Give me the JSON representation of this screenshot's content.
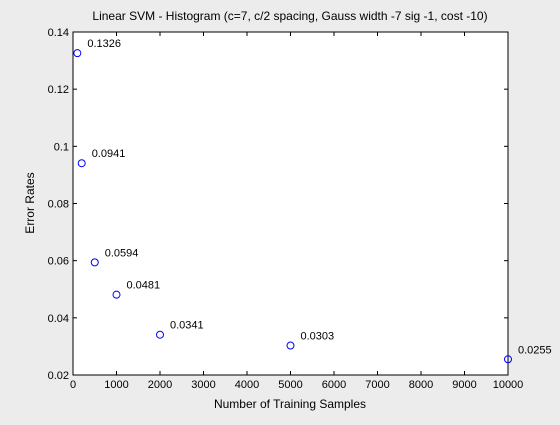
{
  "chart_data": {
    "type": "scatter",
    "title": "Linear SVM - Histogram (c=7, c/2 spacing, Gauss width -7 sig -1, cost -10)",
    "xlabel": "Number of Training Samples",
    "ylabel": "Error Rates",
    "xlim": [
      0,
      10000
    ],
    "ylim": [
      0.02,
      0.14
    ],
    "xticks": [
      0,
      1000,
      2000,
      3000,
      4000,
      5000,
      6000,
      7000,
      8000,
      9000,
      10000
    ],
    "xtick_labels": [
      "0",
      "1000",
      "2000",
      "3000",
      "4000",
      "5000",
      "6000",
      "7000",
      "8000",
      "9000",
      "10000"
    ],
    "yticks": [
      0.02,
      0.04,
      0.06,
      0.08,
      0.1,
      0.12,
      0.14
    ],
    "ytick_labels": [
      "0.02",
      "0.04",
      "0.06",
      "0.08",
      "0.1",
      "0.12",
      "0.14"
    ],
    "grid": false,
    "marker": "circle",
    "marker_color": "#0000ff",
    "x": [
      100,
      200,
      500,
      1000,
      2000,
      5000,
      10000
    ],
    "y": [
      0.1326,
      0.0941,
      0.0594,
      0.0481,
      0.0341,
      0.0303,
      0.0255
    ],
    "data_labels": [
      "0.1326",
      "0.0941",
      "0.0594",
      "0.0481",
      "0.0341",
      "0.0303",
      "0.0255"
    ]
  }
}
